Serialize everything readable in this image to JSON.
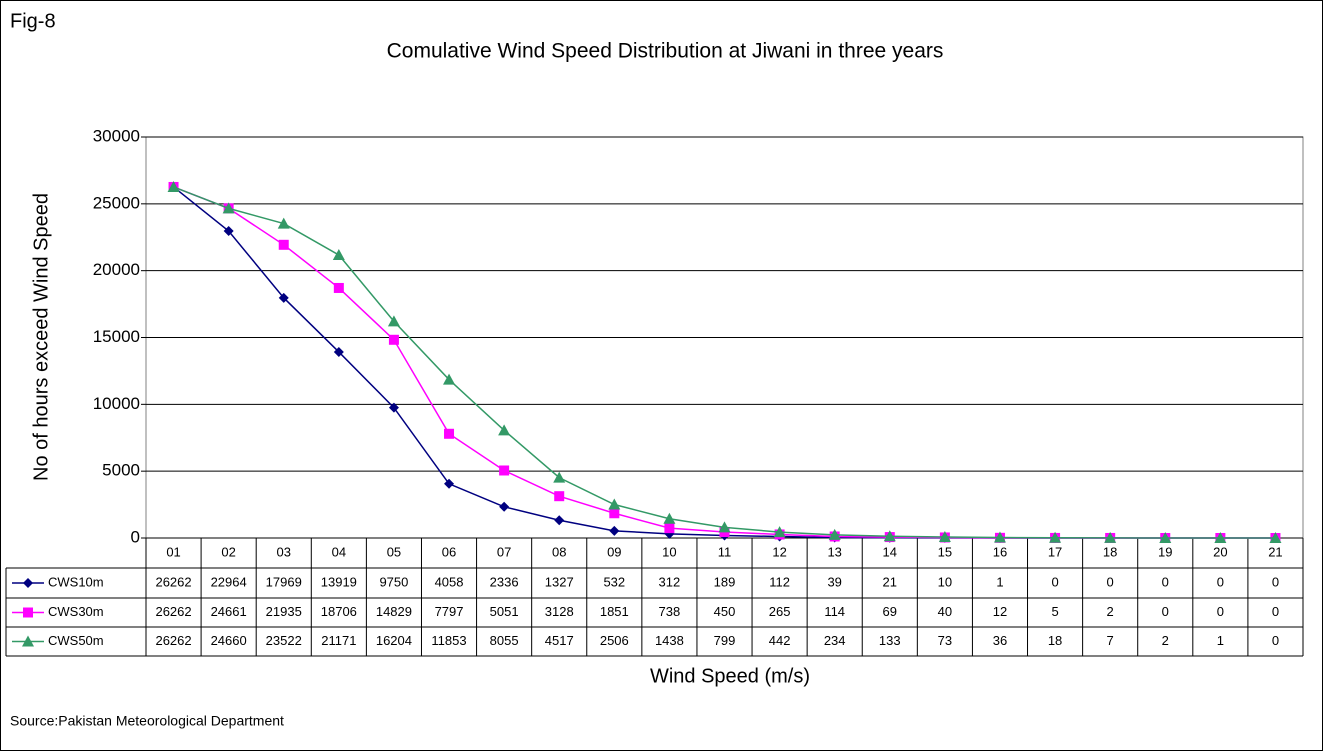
{
  "chart_data": {
    "type": "line",
    "figure_label": "Fig-8",
    "title": "Comulative Wind Speed Distribution at Jiwani in three years",
    "x_label": "Wind Speed (m/s)",
    "y_label": "No of hours  exceed Wind Speed",
    "source": "Source:Pakistan Meteorological Department",
    "categories": [
      "01",
      "02",
      "03",
      "04",
      "05",
      "06",
      "07",
      "08",
      "09",
      "10",
      "11",
      "12",
      "13",
      "14",
      "15",
      "16",
      "17",
      "18",
      "19",
      "20",
      "21"
    ],
    "series": [
      {
        "name": "CWS10m",
        "color": "#000080",
        "marker": "diamond",
        "values": [
          26262,
          22964,
          17969,
          13919,
          9750,
          4058,
          2336,
          1327,
          532,
          312,
          189,
          112,
          39,
          21,
          10,
          1,
          0,
          0,
          0,
          0,
          0
        ]
      },
      {
        "name": "CWS30m",
        "color": "#ff00ff",
        "marker": "square",
        "values": [
          26262,
          24661,
          21935,
          18706,
          14829,
          7797,
          5051,
          3128,
          1851,
          738,
          450,
          265,
          114,
          69,
          40,
          12,
          5,
          2,
          0,
          0,
          0
        ]
      },
      {
        "name": "CWS50m",
        "color": "#339966",
        "marker": "triangle",
        "values": [
          26262,
          24660,
          23522,
          21171,
          16204,
          11853,
          8055,
          4517,
          2506,
          1438,
          799,
          442,
          234,
          133,
          73,
          36,
          18,
          7,
          2,
          1,
          0
        ]
      }
    ],
    "ylim": [
      0,
      30000
    ],
    "yticks": [
      0,
      5000,
      10000,
      15000,
      20000,
      25000,
      30000
    ],
    "grid": true,
    "data_table": true
  }
}
